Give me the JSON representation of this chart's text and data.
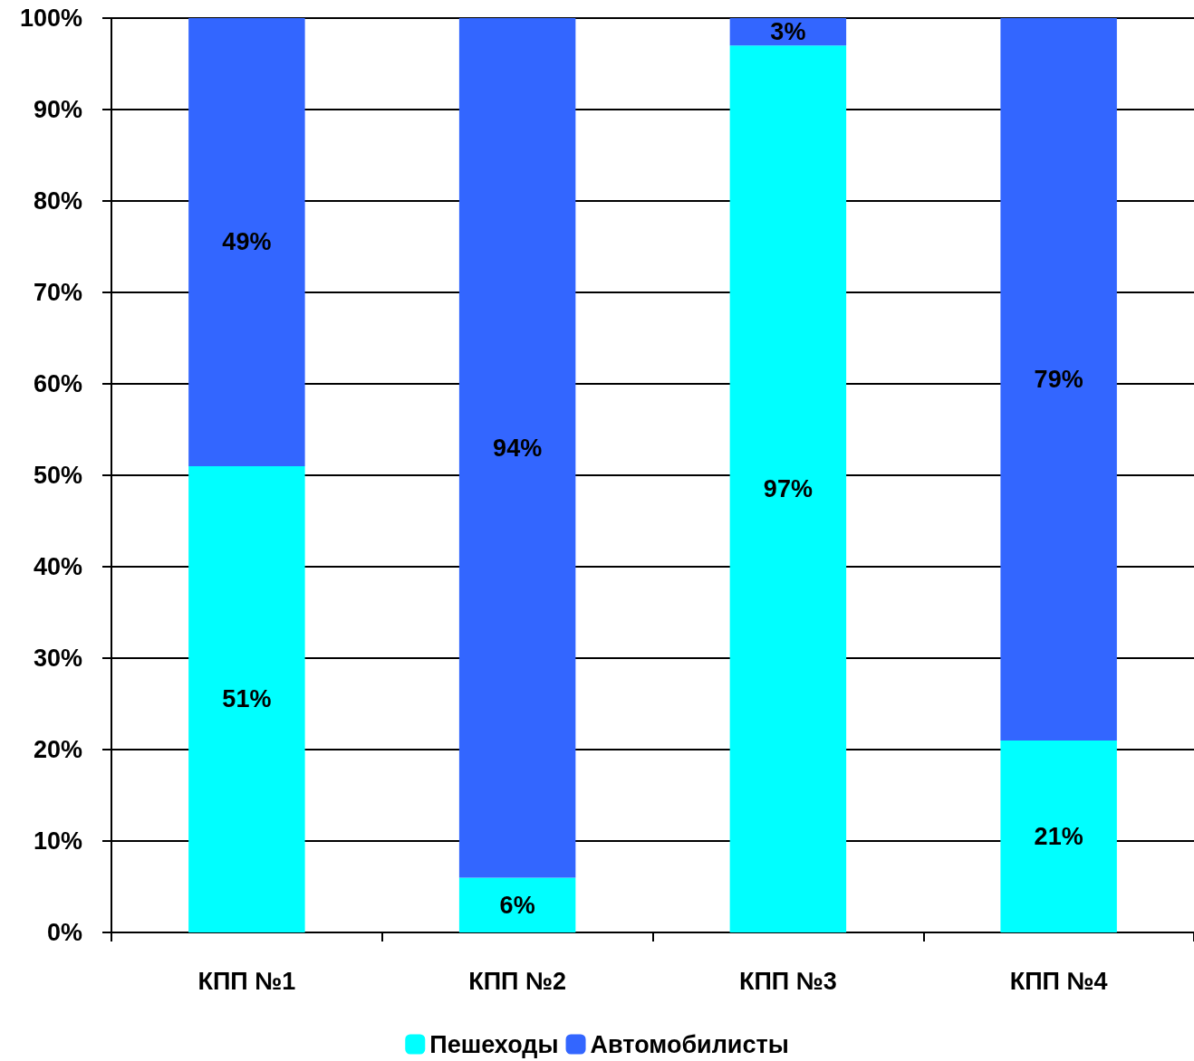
{
  "chart_data": {
    "type": "bar",
    "stacked": true,
    "categories": [
      "КПП №1",
      "КПП №2",
      "КПП №3",
      "КПП №4"
    ],
    "series": [
      {
        "name": "Пешеходы",
        "color": "#00ffff",
        "values": [
          51,
          6,
          97,
          21
        ],
        "value_labels": [
          "51%",
          "6%",
          "97%",
          "21%"
        ]
      },
      {
        "name": "Автомобилисты",
        "color": "#3366ff",
        "values": [
          49,
          94,
          3,
          79
        ],
        "value_labels": [
          "49%",
          "94%",
          "3%",
          "79%"
        ]
      }
    ],
    "ylim": [
      0,
      100
    ],
    "yticks": [
      {
        "value": 0,
        "label": "0%"
      },
      {
        "value": 10,
        "label": "10%"
      },
      {
        "value": 20,
        "label": "20%"
      },
      {
        "value": 30,
        "label": "30%"
      },
      {
        "value": 40,
        "label": "40%"
      },
      {
        "value": 50,
        "label": "50%"
      },
      {
        "value": 60,
        "label": "60%"
      },
      {
        "value": 70,
        "label": "70%"
      },
      {
        "value": 80,
        "label": "80%"
      },
      {
        "value": 90,
        "label": "90%"
      },
      {
        "value": 100,
        "label": "100%"
      }
    ],
    "grid": "y",
    "legend": "bottom"
  }
}
